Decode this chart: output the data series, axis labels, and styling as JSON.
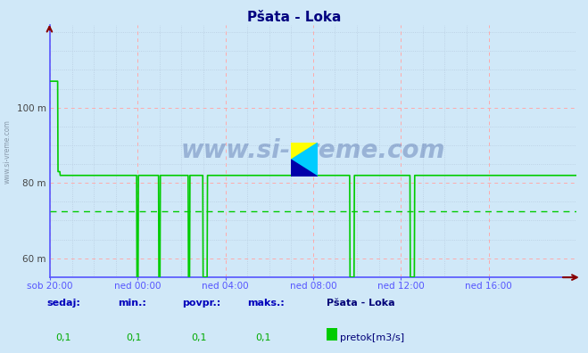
{
  "title": "Pšata - Loka",
  "bg_color": "#d0e8f8",
  "plot_bg_color": "#d0e8f8",
  "line_color": "#00cc00",
  "axis_color": "#5555ff",
  "grid_color_major": "#ffaaaa",
  "grid_color_minor": "#b8cce0",
  "dashed_line_y": 72.5,
  "dashed_line_color": "#00cc00",
  "ylim": [
    55,
    122
  ],
  "yticks": [
    60,
    80,
    100
  ],
  "ytick_labels": [
    "60 m",
    "80 m",
    "100 m"
  ],
  "xtick_labels": [
    "sob 20:00",
    "ned 00:00",
    "ned 04:00",
    "ned 08:00",
    "ned 12:00",
    "ned 16:00"
  ],
  "xtick_positions": [
    0,
    240,
    480,
    720,
    960,
    1200
  ],
  "total_points": 1441,
  "watermark": "www.si-vreme.com",
  "legend_station": "Pšata - Loka",
  "legend_label": "pretok[m3/s]",
  "footer_labels": [
    "sedaj:",
    "min.:",
    "povpr.:",
    "maks.:"
  ],
  "footer_values": [
    "0,1",
    "0,1",
    "0,1",
    "0,1"
  ],
  "title_color": "#000080",
  "watermark_color": "#1a3a8a",
  "side_text_color": "#8899aa"
}
